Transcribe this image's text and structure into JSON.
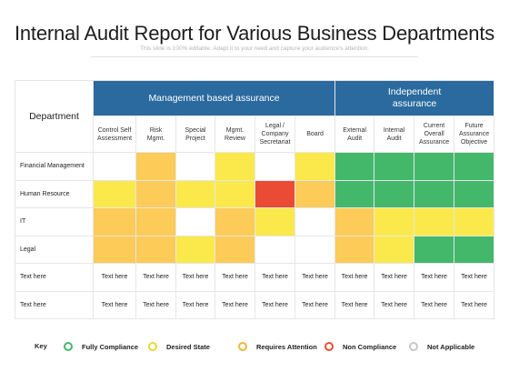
{
  "title": "Internal Audit Report for Various Business Departments",
  "subtitle": "This slide is 100% editable. Adapt it to your need and capture your audience's attention.",
  "table": {
    "department_header": "Department",
    "group_management": "Management based assurance",
    "group_independent": "Independent assurance",
    "columns": [
      [
        "Control Self",
        "Assessment"
      ],
      [
        "Risk",
        "Mgmt."
      ],
      [
        "Special",
        "Project"
      ],
      [
        "Mgmt.",
        "Review"
      ],
      [
        "Legal /",
        "Company",
        "Secretariat"
      ],
      [
        "Board"
      ],
      [
        "External",
        "Audit"
      ],
      [
        "Internal",
        "Audit"
      ],
      [
        "Current",
        "Overall",
        "Assurance"
      ],
      [
        "Future",
        "Assurance",
        "Objective"
      ]
    ],
    "rows": [
      {
        "label": "Financial Management",
        "cells": [
          "empty",
          "orange",
          "empty",
          "yellow",
          "empty",
          "yellow",
          "green",
          "green",
          "green",
          "green"
        ]
      },
      {
        "label": "Human Resource",
        "cells": [
          "yellow",
          "orange",
          "yellow",
          "yellow",
          "red",
          "orange",
          "green",
          "green",
          "green",
          "green"
        ]
      },
      {
        "label": "IT",
        "cells": [
          "orange",
          "orange",
          "empty",
          "orange",
          "yellow",
          "empty",
          "orange",
          "yellow",
          "yellow",
          "yellow"
        ]
      },
      {
        "label": "Legal",
        "cells": [
          "orange",
          "orange",
          "yellow",
          "orange",
          "empty",
          "empty",
          "orange",
          "yellow",
          "green",
          "green"
        ]
      },
      {
        "label": "Text here",
        "cells": [
          "Text here",
          "Text here",
          "Text here",
          "Text here",
          "Text here",
          "Text here",
          "Text here",
          "Text here",
          "Text here",
          "Text here"
        ]
      },
      {
        "label": "Text here",
        "cells": [
          "Text here",
          "Text here",
          "Text here",
          "Text here",
          "Text here",
          "Text here",
          "Text here",
          "Text here",
          "Text here",
          "Text here"
        ]
      }
    ]
  },
  "key": {
    "label": "Key",
    "items": [
      {
        "label": "Fully Compliance",
        "color": "#44b86a",
        "icon": "green-circle-icon"
      },
      {
        "label": "Desired State",
        "color": "#e9d636",
        "icon": "yellow-circle-icon"
      },
      {
        "label": "Requires Attention",
        "color": "#f2b53a",
        "icon": "orange-circle-icon"
      },
      {
        "label": "Non Compliance",
        "color": "#eb4b34",
        "icon": "red-circle-icon"
      },
      {
        "label": "Not Applicable",
        "color": "#c8c8c8",
        "icon": "grey-circle-icon"
      }
    ]
  }
}
